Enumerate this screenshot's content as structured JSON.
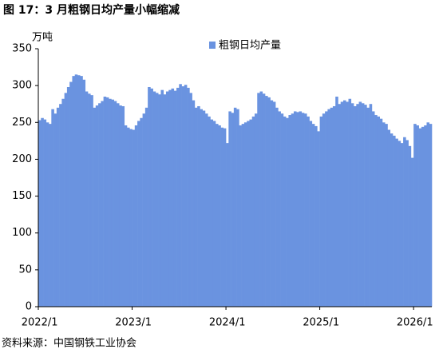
{
  "chart_data": {
    "type": "bar",
    "title": "图 17：3 月粗钢日均产量小幅缩减",
    "y_label": "万吨",
    "source": "资料来源：中国钢铁工业协会",
    "series": [
      {
        "name": "粗钢日均产量",
        "color": "#6a93e0",
        "values": [
          253,
          256,
          254,
          250,
          248,
          268,
          262,
          270,
          275,
          282,
          290,
          298,
          305,
          313,
          315,
          314,
          313,
          308,
          292,
          289,
          287,
          270,
          273,
          276,
          279,
          285,
          284,
          282,
          281,
          279,
          276,
          273,
          272,
          246,
          243,
          241,
          240,
          246,
          252,
          256,
          262,
          270,
          298,
          296,
          292,
          290,
          288,
          294,
          288,
          292,
          294,
          296,
          293,
          297,
          302,
          299,
          301,
          297,
          290,
          280,
          270,
          272,
          268,
          266,
          262,
          258,
          254,
          252,
          248,
          246,
          243,
          242,
          222,
          265,
          263,
          270,
          268,
          246,
          248,
          250,
          252,
          254,
          258,
          262,
          290,
          292,
          289,
          286,
          284,
          280,
          278,
          270,
          265,
          262,
          258,
          256,
          260,
          262,
          265,
          264,
          265,
          263,
          262,
          258,
          252,
          248,
          245,
          238,
          258,
          262,
          265,
          268,
          270,
          272,
          285,
          275,
          278,
          280,
          278,
          282,
          276,
          272,
          275,
          278,
          276,
          274,
          270,
          275,
          265,
          260,
          258,
          255,
          250,
          248,
          240,
          235,
          232,
          228,
          225,
          222,
          230,
          226,
          218,
          202,
          248,
          246,
          242,
          244,
          246,
          250,
          248
        ]
      }
    ],
    "categories": [
      "2022/1",
      null,
      null,
      null,
      null,
      null,
      null,
      null,
      null,
      null,
      null,
      null,
      null,
      null,
      null,
      null,
      null,
      null,
      null,
      null,
      null,
      null,
      null,
      null,
      null,
      null,
      null,
      null,
      null,
      null,
      null,
      null,
      null,
      null,
      null,
      null,
      "2023/1",
      null,
      null,
      null,
      null,
      null,
      null,
      null,
      null,
      null,
      null,
      null,
      null,
      null,
      null,
      null,
      null,
      null,
      null,
      null,
      null,
      null,
      null,
      null,
      null,
      null,
      null,
      null,
      null,
      null,
      null,
      null,
      null,
      null,
      null,
      null,
      "2024/1",
      null,
      null,
      null,
      null,
      null,
      null,
      null,
      null,
      null,
      null,
      null,
      null,
      null,
      null,
      null,
      null,
      null,
      null,
      null,
      null,
      null,
      null,
      null,
      null,
      null,
      null,
      null,
      null,
      null,
      null,
      null,
      null,
      null,
      null,
      null,
      "2025/1",
      null,
      null,
      null,
      null,
      null,
      null,
      null,
      null,
      null,
      null,
      null,
      null,
      null,
      null,
      null,
      null,
      null,
      null,
      null,
      null,
      null,
      null,
      null,
      null,
      null,
      null,
      null,
      null,
      null,
      null,
      null,
      null,
      null,
      null,
      null,
      "2026/1",
      null,
      null,
      null,
      null,
      null,
      null
    ],
    "ylim": [
      0,
      350
    ],
    "yticks": [
      0,
      50,
      100,
      150,
      200,
      250,
      300,
      350
    ],
    "legend": "top"
  }
}
